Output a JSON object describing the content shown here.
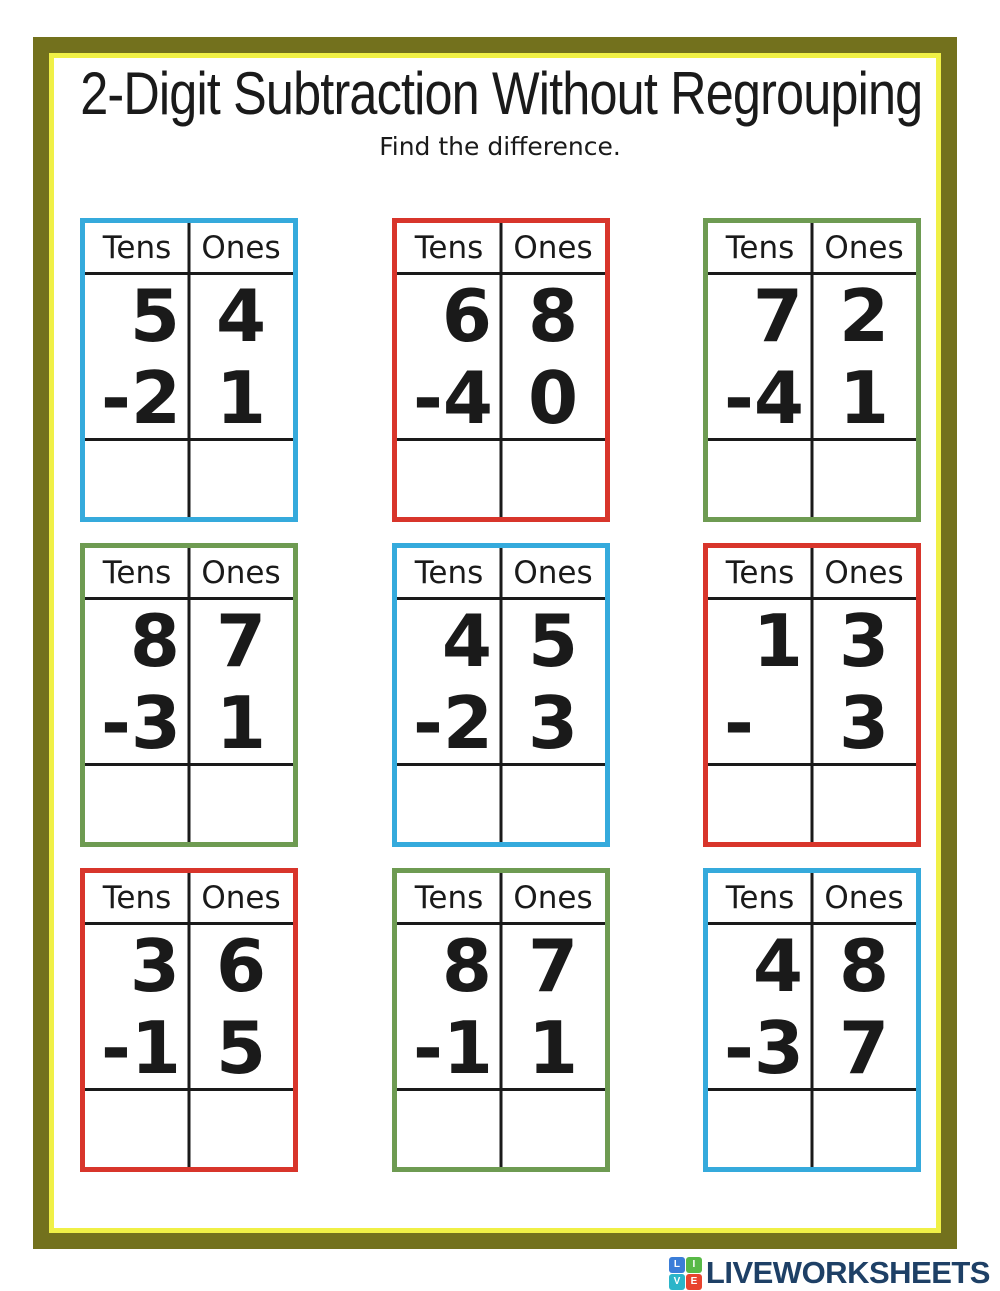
{
  "title": "2-Digit Subtraction Without Regrouping",
  "subtitle": "Find the difference.",
  "column_headers": {
    "tens": "Tens",
    "ones": "Ones"
  },
  "minus_sign": "-",
  "colors": {
    "blue": "#35AADC",
    "red": "#D8352B",
    "green": "#6E9B52",
    "frame": "#73711D",
    "frame_inner": "#F0F046",
    "brand_navy": "#1E4066",
    "ink": "#1a1a1a"
  },
  "problems": [
    {
      "border": "blue",
      "minuend_tens": "5",
      "minuend_ones": "4",
      "subtrahend_tens": "2",
      "subtrahend_ones": "1"
    },
    {
      "border": "red",
      "minuend_tens": "6",
      "minuend_ones": "8",
      "subtrahend_tens": "4",
      "subtrahend_ones": "0"
    },
    {
      "border": "green",
      "minuend_tens": "7",
      "minuend_ones": "2",
      "subtrahend_tens": "4",
      "subtrahend_ones": "1"
    },
    {
      "border": "green",
      "minuend_tens": "8",
      "minuend_ones": "7",
      "subtrahend_tens": "3",
      "subtrahend_ones": "1"
    },
    {
      "border": "blue",
      "minuend_tens": "4",
      "minuend_ones": "5",
      "subtrahend_tens": "2",
      "subtrahend_ones": "3"
    },
    {
      "border": "red",
      "minuend_tens": "1",
      "minuend_ones": "3",
      "subtrahend_tens": "",
      "subtrahend_ones": "3"
    },
    {
      "border": "red",
      "minuend_tens": "3",
      "minuend_ones": "6",
      "subtrahend_tens": "1",
      "subtrahend_ones": "5"
    },
    {
      "border": "green",
      "minuend_tens": "8",
      "minuend_ones": "7",
      "subtrahend_tens": "1",
      "subtrahend_ones": "1"
    },
    {
      "border": "blue",
      "minuend_tens": "4",
      "minuend_ones": "8",
      "subtrahend_tens": "3",
      "subtrahend_ones": "7"
    }
  ],
  "footer": {
    "brand": "LIVEWORKSHEETS",
    "logo_tiles": [
      {
        "letter": "L",
        "color": "#3B7DD8"
      },
      {
        "letter": "I",
        "color": "#58B947"
      },
      {
        "letter": "V",
        "color": "#2BB5C9"
      },
      {
        "letter": "E",
        "color": "#E8432E"
      }
    ]
  }
}
